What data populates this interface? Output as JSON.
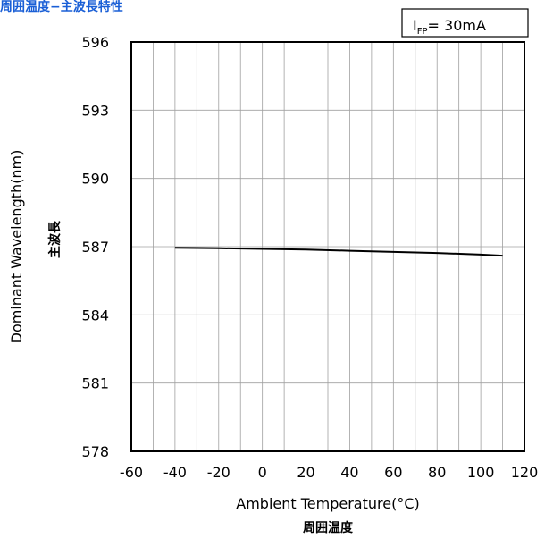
{
  "header": {
    "title": "周囲温度−主波長特性"
  },
  "chart_data": {
    "type": "line",
    "condition": {
      "main": "I",
      "sub": "FP",
      "rest": "= 30mA"
    },
    "xlabel": "Ambient Temperature(°C)",
    "xlabel_jp": "周囲温度",
    "ylabel": "Dominant  Wavelength(nm)",
    "ylabel_jp": "主波長",
    "xlim": [
      -60,
      120
    ],
    "ylim": [
      578,
      596
    ],
    "x_ticks": [
      -60,
      -40,
      -20,
      0,
      20,
      40,
      60,
      80,
      100,
      120
    ],
    "y_ticks": [
      596,
      593,
      590,
      587,
      584,
      581,
      578
    ],
    "grid": true,
    "series": [
      {
        "x": [
          -40,
          -20,
          0,
          20,
          40,
          60,
          80,
          100,
          110
        ],
        "y": [
          586.95,
          586.93,
          586.9,
          586.87,
          586.82,
          586.77,
          586.72,
          586.65,
          586.6
        ]
      }
    ],
    "colors": {
      "line": "#000000",
      "grid": "#a0a0a0",
      "title": "#1a5fd6"
    }
  }
}
